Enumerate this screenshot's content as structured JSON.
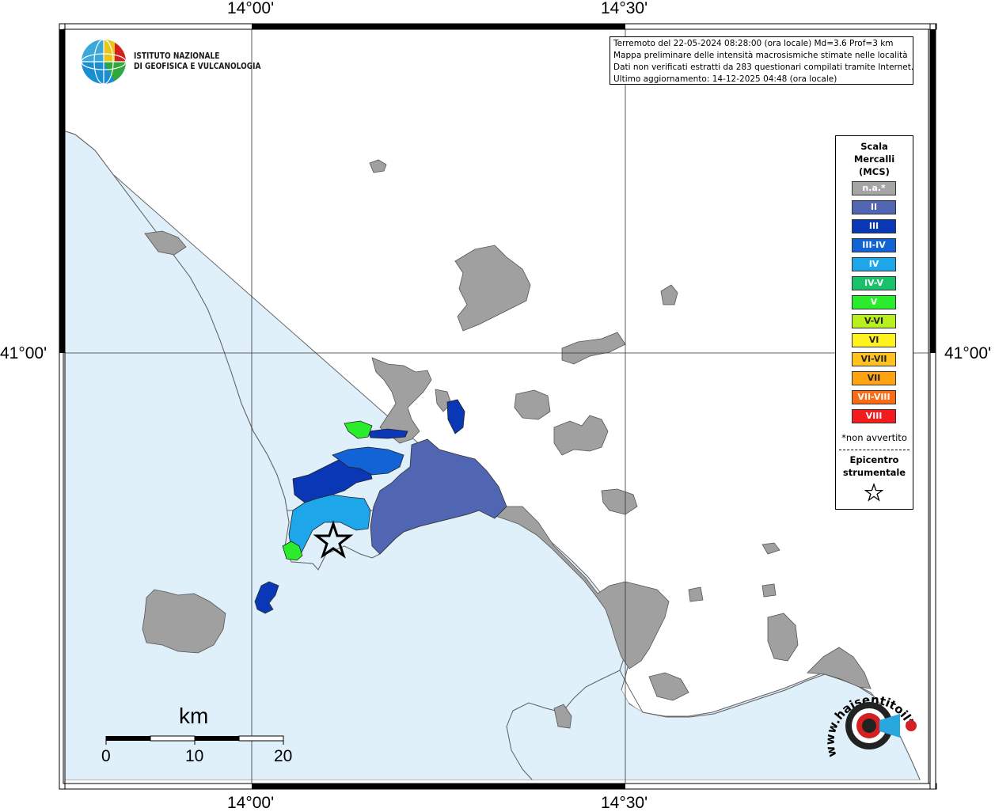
{
  "map": {
    "coordinates": {
      "top": [
        "14°00'",
        "14°30'"
      ],
      "bottom": [
        "14°00'",
        "14°30'"
      ],
      "left": [
        "41°00'"
      ],
      "right": [
        "41°00'"
      ]
    },
    "colors": {
      "sea": "#e0f0fb",
      "land": "#ffffff",
      "not_felt": "#a0a0a0",
      "II": "#5364a8",
      "III": "#0b3db8",
      "IV": "#1ea0e8",
      "V": "#2ee82e"
    }
  },
  "info": {
    "line1": "Terremoto del 22-05-2024 08:28:00 (ora locale) Md=3.6 Prof=3 km",
    "line2": "Mappa preliminare delle intensità macrosismiche stimate nelle località",
    "line3": "Dati non verificati estratti da 283 questionari compilati tramite Internet.",
    "line4": "Ultimo aggiornamento: 14-12-2025 04:48 (ora locale)"
  },
  "logo": {
    "line1": "ISTITUTO NAZIONALE",
    "line2": "DI GEOFISICA E VULCANOLOGIA"
  },
  "legend": {
    "title": [
      "Scala",
      "Mercalli",
      "(MCS)"
    ],
    "items": [
      {
        "label": "n.a.*",
        "color": "#a5a5a5"
      },
      {
        "label": "II",
        "color": "#5066b3"
      },
      {
        "label": "III",
        "color": "#0a37b5"
      },
      {
        "label": "III-IV",
        "color": "#1264d6"
      },
      {
        "label": "IV",
        "color": "#1ea6ea"
      },
      {
        "label": "IV-V",
        "color": "#19c26a"
      },
      {
        "label": "V",
        "color": "#2bec2b"
      },
      {
        "label": "V-VI",
        "color": "#b8f01e"
      },
      {
        "label": "VI",
        "color": "#fff21e"
      },
      {
        "label": "VI-VII",
        "color": "#ffc21e"
      },
      {
        "label": "VII",
        "color": "#ffa312"
      },
      {
        "label": "VII-VIII",
        "color": "#fb6a14"
      },
      {
        "label": "VIII",
        "color": "#f21c1c"
      }
    ],
    "note": "*non avvertito",
    "epicenter": [
      "Epicentro",
      "strumentale"
    ]
  },
  "scalebar": {
    "unit": "km",
    "ticks": [
      "0",
      "10",
      "20"
    ]
  },
  "stamp": {
    "text": "www.haisentitoilterremoto.it"
  }
}
